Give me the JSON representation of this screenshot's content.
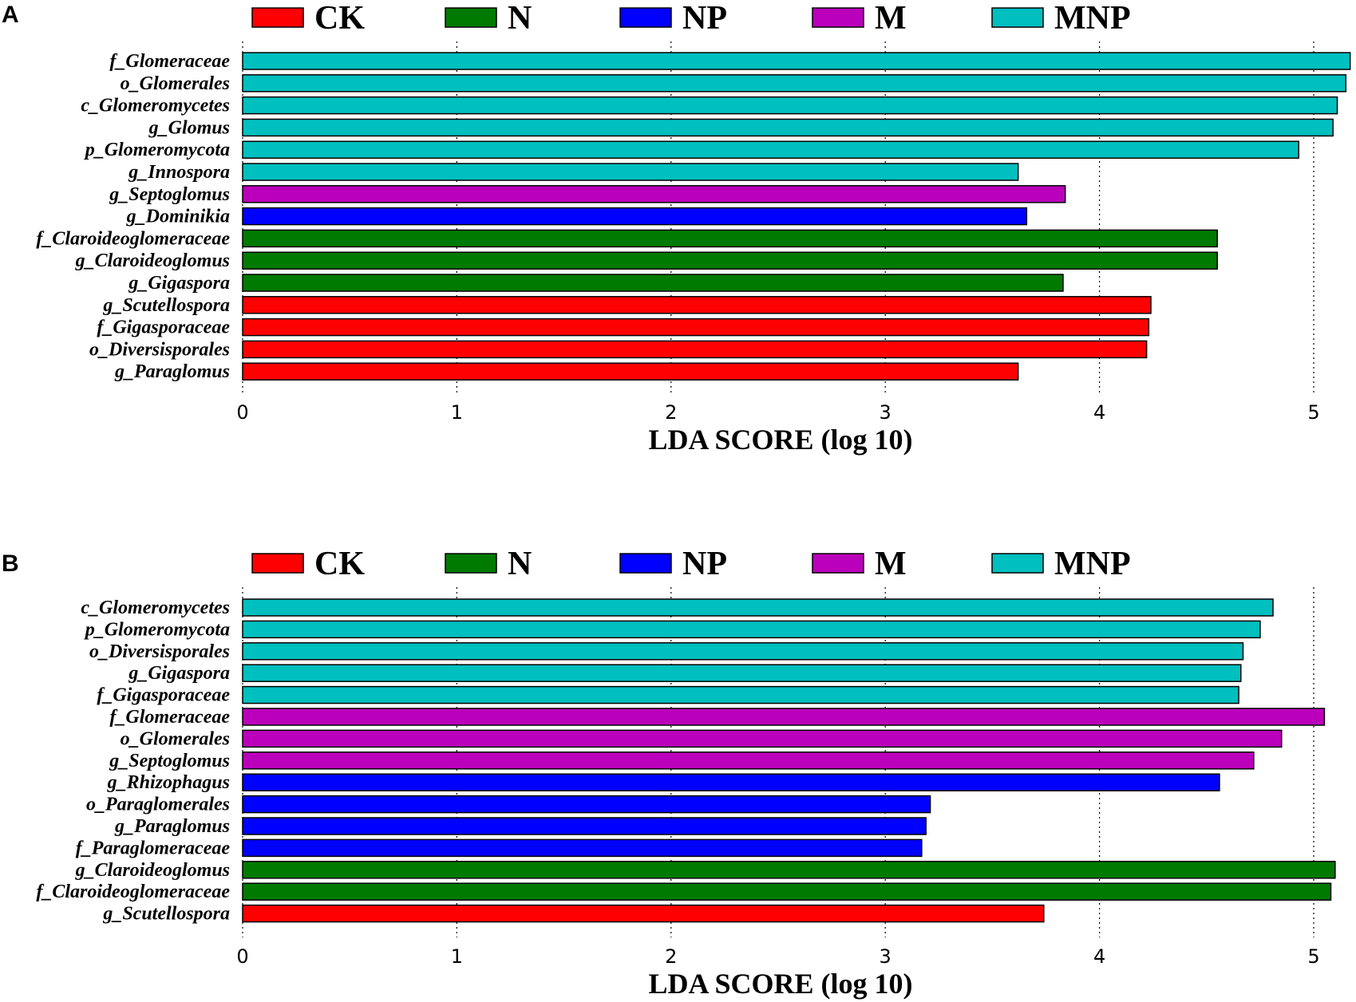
{
  "colors": {
    "CK": "#ff0000",
    "N": "#007a00",
    "NP": "#0000ff",
    "M": "#bb00bb",
    "MNP": "#00bfbf"
  },
  "chart_data": [
    {
      "panel": "A",
      "type": "bar",
      "orientation": "horizontal",
      "xlabel": "LDA SCORE (log 10)",
      "xlim": [
        0,
        5.2
      ],
      "xticks": [
        0,
        1,
        2,
        3,
        4,
        5
      ],
      "grid": "vertical dotted",
      "legend": [
        "CK",
        "N",
        "NP",
        "M",
        "MNP"
      ],
      "legend_position": "top",
      "bars": [
        {
          "label": "f_Glomeraceae",
          "value": 5.17,
          "group": "MNP"
        },
        {
          "label": "o_Glomerales",
          "value": 5.15,
          "group": "MNP"
        },
        {
          "label": "c_Glomeromycetes",
          "value": 5.11,
          "group": "MNP"
        },
        {
          "label": "g_Glomus",
          "value": 5.09,
          "group": "MNP"
        },
        {
          "label": "p_Glomeromycota",
          "value": 4.93,
          "group": "MNP"
        },
        {
          "label": "g_Innospora",
          "value": 3.62,
          "group": "MNP"
        },
        {
          "label": "g_Septoglomus",
          "value": 3.84,
          "group": "M"
        },
        {
          "label": "g_Dominikia",
          "value": 3.66,
          "group": "NP"
        },
        {
          "label": "f_Claroideoglomeraceae",
          "value": 4.55,
          "group": "N"
        },
        {
          "label": "g_Claroideoglomus",
          "value": 4.55,
          "group": "N"
        },
        {
          "label": "g_Gigaspora",
          "value": 3.83,
          "group": "N"
        },
        {
          "label": "g_Scutellospora",
          "value": 4.24,
          "group": "CK"
        },
        {
          "label": "f_Gigasporaceae",
          "value": 4.23,
          "group": "CK"
        },
        {
          "label": "o_Diversisporales",
          "value": 4.22,
          "group": "CK"
        },
        {
          "label": "g_Paraglomus",
          "value": 3.62,
          "group": "CK"
        }
      ]
    },
    {
      "panel": "B",
      "type": "bar",
      "orientation": "horizontal",
      "xlabel": "LDA SCORE (log 10)",
      "xlim": [
        0,
        5.2
      ],
      "xticks": [
        0,
        1,
        2,
        3,
        4,
        5
      ],
      "grid": "vertical dotted",
      "legend": [
        "CK",
        "N",
        "NP",
        "M",
        "MNP"
      ],
      "legend_position": "top",
      "bars": [
        {
          "label": "c_Glomeromycetes",
          "value": 4.81,
          "group": "MNP"
        },
        {
          "label": "p_Glomeromycota",
          "value": 4.75,
          "group": "MNP"
        },
        {
          "label": "o_Diversisporales",
          "value": 4.67,
          "group": "MNP"
        },
        {
          "label": "g_Gigaspora",
          "value": 4.66,
          "group": "MNP"
        },
        {
          "label": "f_Gigasporaceae",
          "value": 4.65,
          "group": "MNP"
        },
        {
          "label": "f_Glomeraceae",
          "value": 5.05,
          "group": "M"
        },
        {
          "label": "o_Glomerales",
          "value": 4.85,
          "group": "M"
        },
        {
          "label": "g_Septoglomus",
          "value": 4.72,
          "group": "M"
        },
        {
          "label": "g_Rhizophagus",
          "value": 4.56,
          "group": "NP"
        },
        {
          "label": "o_Paraglomerales",
          "value": 3.21,
          "group": "NP"
        },
        {
          "label": "g_Paraglomus",
          "value": 3.19,
          "group": "NP"
        },
        {
          "label": "f_Paraglomeraceae",
          "value": 3.17,
          "group": "NP"
        },
        {
          "label": "g_Claroideoglomus",
          "value": 5.1,
          "group": "N"
        },
        {
          "label": "f_Claroideoglomeraceae",
          "value": 5.08,
          "group": "N"
        },
        {
          "label": "g_Scutellospora",
          "value": 3.74,
          "group": "CK"
        }
      ]
    }
  ]
}
